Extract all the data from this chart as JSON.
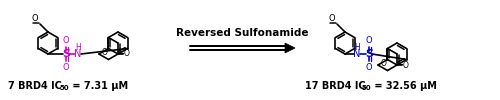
{
  "bg_color": "#ffffff",
  "text_color": "#000000",
  "bond_color": "#000000",
  "sulfonamide_color_left": "#cc00cc",
  "sulfonamide_color_right": "#0000cc",
  "arrow_label": "Reversed Sulfonamide",
  "left_label": "7 BRD4 IC",
  "left_sub": "50",
  "left_eq": " = 7.31 μM",
  "right_label": "17 BRD4 IC",
  "right_sub": "50",
  "right_eq": " = 32.56 μM",
  "label_fontsize": 7.0,
  "arrow_fontsize": 7.5,
  "fig_width": 5.0,
  "fig_height": 1.0,
  "dpi": 100
}
